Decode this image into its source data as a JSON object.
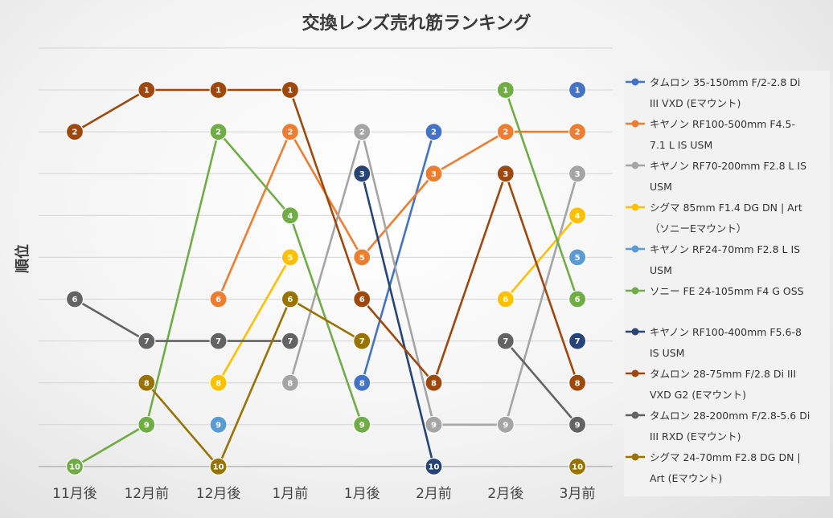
{
  "chart_data": {
    "type": "line",
    "title": "交換レンズ売れ筋ランキング",
    "ylabel": "順位",
    "xlabel": "",
    "y_reversed": true,
    "ylim": [
      1,
      10
    ],
    "grid": true,
    "legend_position": "right",
    "categories": [
      "11月後",
      "12月前",
      "12月後",
      "1月前",
      "1月後",
      "2月前",
      "2月後",
      "3月前"
    ],
    "series": [
      {
        "name": "タムロン 35-150mm F/2-2.8 Di III VXD (Eマウント)",
        "color": "#4472C4",
        "values": [
          null,
          null,
          null,
          null,
          8,
          2,
          null,
          1
        ]
      },
      {
        "name": "キヤノン RF100-500mm F4.5-7.1 L IS USM",
        "color": "#ED7D31",
        "values": [
          null,
          null,
          6,
          2,
          5,
          3,
          2,
          2
        ]
      },
      {
        "name": "キヤノン RF70-200mm F2.8 L IS USM",
        "color": "#A5A5A5",
        "values": [
          null,
          null,
          null,
          8,
          2,
          9,
          9,
          3
        ]
      },
      {
        "name": "シグマ 85mm F1.4 DG DN | Art （ソニーEマウント）",
        "color": "#FFC000",
        "values": [
          null,
          null,
          8,
          5,
          null,
          null,
          6,
          4
        ]
      },
      {
        "name": "キヤノン RF24-70mm F2.8 L IS USM",
        "color": "#5B9BD5",
        "values": [
          null,
          null,
          9,
          null,
          null,
          null,
          null,
          5
        ]
      },
      {
        "name": "ソニー FE 24-105mm F4 G OSS",
        "color": "#70AD47",
        "values": [
          10,
          9,
          2,
          4,
          9,
          null,
          1,
          6
        ]
      },
      {
        "name": "キヤノン RF100-400mm F5.6-8 IS USM",
        "color": "#264478",
        "values": [
          null,
          null,
          null,
          null,
          3,
          10,
          null,
          7
        ]
      },
      {
        "name": "タムロン 28-75mm F/2.8 Di III VXD G2 (Eマウント)",
        "color": "#9E480E",
        "values": [
          2,
          1,
          1,
          1,
          6,
          8,
          3,
          8
        ]
      },
      {
        "name": "タムロン 28-200mm F/2.8-5.6 Di III RXD (Eマウント)",
        "color": "#636363",
        "values": [
          6,
          7,
          7,
          7,
          null,
          null,
          7,
          9
        ]
      },
      {
        "name": "シグマ 24-70mm F2.8 DG DN | Art (Eマウント)",
        "color": "#997300",
        "values": [
          null,
          8,
          10,
          6,
          7,
          null,
          null,
          10
        ]
      }
    ]
  },
  "legend": {
    "items": [
      {
        "lines": [
          "タムロン 35-150mm F/2-2.8 Di",
          "III VXD (Eマウント)"
        ],
        "color": "#4472C4"
      },
      {
        "lines": [
          "キヤノン RF100-500mm F4.5-",
          "7.1 L IS USM"
        ],
        "color": "#ED7D31"
      },
      {
        "lines": [
          "キヤノン RF70-200mm F2.8 L IS",
          "USM"
        ],
        "color": "#A5A5A5"
      },
      {
        "lines": [
          "シグマ 85mm F1.4 DG DN | Art",
          "（ソニーEマウント）"
        ],
        "color": "#FFC000"
      },
      {
        "lines": [
          "キヤノン RF24-70mm F2.8 L IS",
          "USM"
        ],
        "color": "#5B9BD5"
      },
      {
        "lines": [
          "ソニー FE 24-105mm F4 G OSS"
        ],
        "color": "#70AD47"
      },
      {
        "lines": [
          "キヤノン RF100-400mm F5.6-8",
          "IS USM"
        ],
        "color": "#264478"
      },
      {
        "lines": [
          "タムロン 28-75mm F/2.8 Di III",
          "VXD G2 (Eマウント)"
        ],
        "color": "#9E480E"
      },
      {
        "lines": [
          "タムロン 28-200mm F/2.8-5.6 Di",
          "III RXD (Eマウント)"
        ],
        "color": "#636363"
      },
      {
        "lines": [
          "シグマ 24-70mm F2.8 DG DN |",
          "Art (Eマウント)"
        ],
        "color": "#997300"
      }
    ]
  }
}
